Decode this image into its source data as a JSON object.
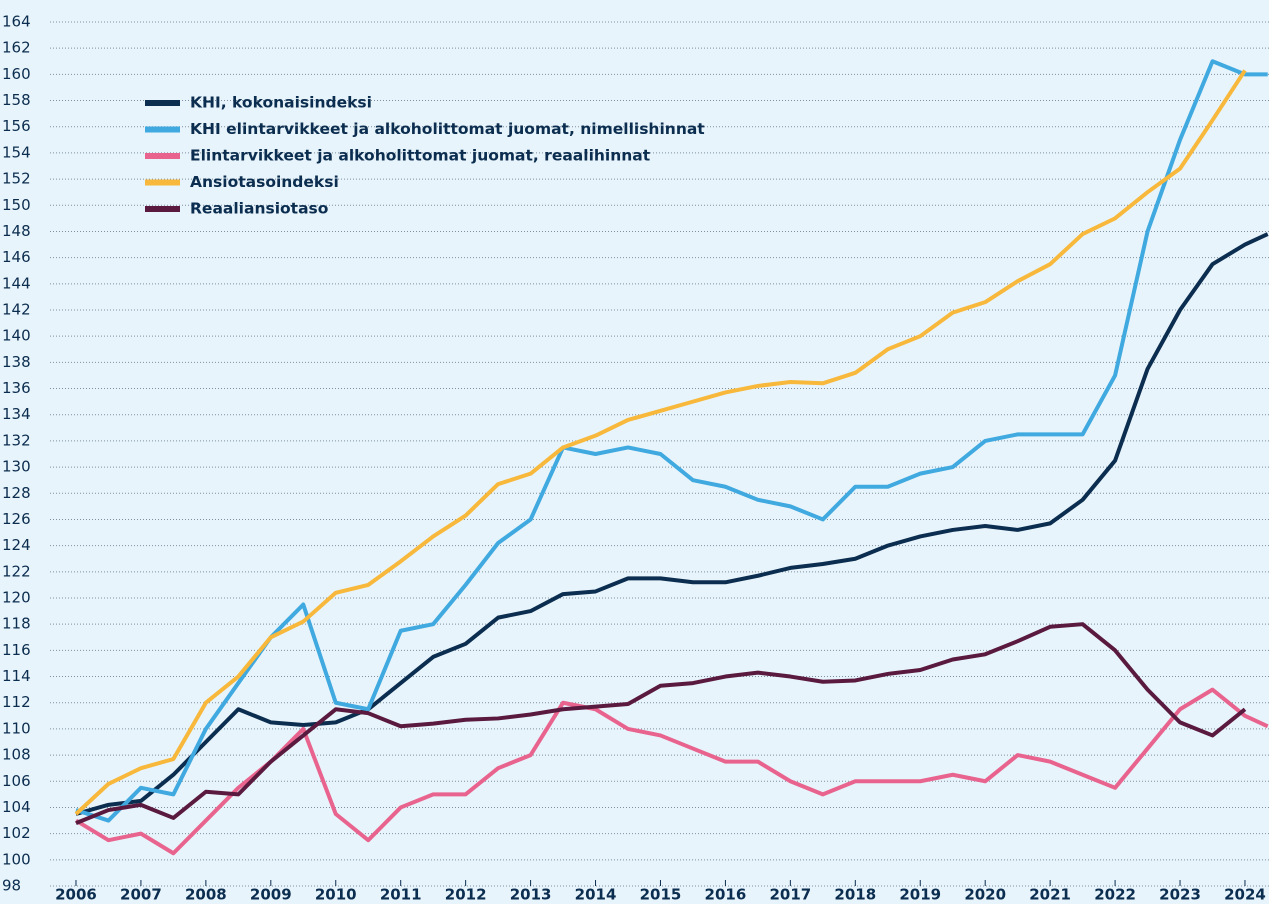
{
  "chart_data": {
    "type": "line",
    "x": [
      2006,
      2006.5,
      2007,
      2007.5,
      2008,
      2008.5,
      2009,
      2009.5,
      2010,
      2010.5,
      2011,
      2011.5,
      2012,
      2012.5,
      2013,
      2013.5,
      2014,
      2014.5,
      2015,
      2015.5,
      2016,
      2016.5,
      2017,
      2017.5,
      2018,
      2018.5,
      2019,
      2019.5,
      2020,
      2020.5,
      2021,
      2021.5,
      2022,
      2022.5,
      2023,
      2023.5,
      2024,
      2024.35
    ],
    "series": [
      {
        "name": "KHI, kokonaisindeksi",
        "color": "#0b2d4f",
        "values": [
          103.5,
          104.2,
          104.5,
          106.5,
          109,
          111.5,
          110.5,
          110.3,
          110.5,
          111.5,
          113.5,
          115.5,
          116.5,
          118.5,
          119,
          120.3,
          120.5,
          121.5,
          121.5,
          121.2,
          121.2,
          121.7,
          122.3,
          122.6,
          123,
          124,
          124.7,
          125.2,
          125.5,
          125.2,
          125.7,
          127.5,
          130.5,
          137.5,
          142,
          145.5,
          147,
          147.8
        ]
      },
      {
        "name": "KHI elintarvikkeet ja alkoholittomat juomat, nimellishinnat",
        "color": "#3fa9e0",
        "values": [
          103.8,
          103,
          105.5,
          105,
          110,
          113.5,
          117,
          119.5,
          112,
          111.5,
          117.5,
          118,
          121,
          124.2,
          126,
          131.5,
          131,
          131.5,
          131,
          129,
          128.5,
          127.5,
          127,
          126,
          128.5,
          128.5,
          129.5,
          130,
          132,
          132.5,
          132.5,
          132.5,
          137,
          148,
          155,
          161,
          160,
          160
        ]
      },
      {
        "name": "Elintarvikkeet ja alkoholittomat juomat, reaalihinnat",
        "color": "#e8648e",
        "values": [
          103,
          101.5,
          102,
          100.5,
          103,
          105.5,
          107.5,
          110,
          103.5,
          101.5,
          104,
          105,
          105,
          107,
          108,
          112,
          111.5,
          110,
          109.5,
          108.5,
          107.5,
          107.5,
          106,
          105,
          106,
          106,
          106,
          106.5,
          106,
          108,
          107.5,
          106.5,
          105.5,
          108.5,
          111.5,
          113,
          111,
          110.2
        ]
      },
      {
        "name": "Ansiotasoindeksi",
        "color": "#f7b83b",
        "values": [
          103.5,
          105.8,
          107,
          107.7,
          112,
          114,
          117,
          118.2,
          120.4,
          121,
          122.8,
          124.7,
          126.3,
          128.7,
          129.5,
          131.5,
          132.4,
          133.6,
          134.3,
          135,
          135.7,
          136.2,
          136.5,
          136.4,
          137.2,
          139,
          140,
          141.8,
          142.6,
          144.2,
          145.5,
          147.8,
          149,
          151,
          152.8,
          156.5,
          160.3,
          null
        ]
      },
      {
        "name": "Reaaliansiotaso",
        "color": "#5a1a3f",
        "values": [
          102.8,
          103.8,
          104.2,
          103.2,
          105.2,
          105,
          107.5,
          109.5,
          111.5,
          111.2,
          110.2,
          110.4,
          110.7,
          110.8,
          111.1,
          111.5,
          111.7,
          111.9,
          113.3,
          113.5,
          114,
          114.3,
          114,
          113.6,
          113.7,
          114.2,
          114.5,
          115.3,
          115.7,
          116.7,
          117.8,
          118,
          116,
          113,
          110.5,
          109.5,
          111.5,
          null
        ]
      }
    ],
    "xlim": [
      2005.6,
      2024.37
    ],
    "xticks": [
      2006,
      2007,
      2008,
      2009,
      2010,
      2011,
      2012,
      2013,
      2014,
      2015,
      2016,
      2017,
      2018,
      2019,
      2020,
      2021,
      2022,
      2023,
      2024
    ],
    "ylim": [
      98,
      164
    ],
    "yticks": [
      98,
      100,
      102,
      104,
      106,
      108,
      110,
      112,
      114,
      116,
      118,
      120,
      122,
      124,
      126,
      128,
      130,
      132,
      134,
      136,
      138,
      140,
      142,
      144,
      146,
      148,
      150,
      152,
      154,
      156,
      158,
      160,
      162,
      164
    ],
    "grid": true,
    "legend": "upper-left"
  }
}
